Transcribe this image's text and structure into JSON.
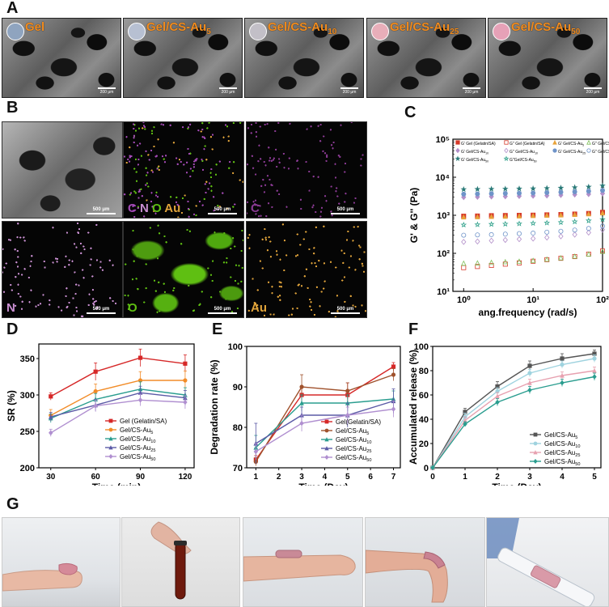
{
  "panels": {
    "A": "A",
    "B": "B",
    "C": "C",
    "D": "D",
    "E": "E",
    "F": "F",
    "G": "G"
  },
  "sem_images": [
    {
      "label": "Gel",
      "sub": "",
      "disc_color": "#8fa4bf",
      "scale": "200 μm"
    },
    {
      "label": "Gel/CS-Au",
      "sub": "5",
      "disc_color": "#b7c0d2",
      "scale": "200 μm"
    },
    {
      "label": "Gel/CS-Au",
      "sub": "10",
      "disc_color": "#c2bfc7",
      "scale": "200 μm"
    },
    {
      "label": "Gel/CS-Au",
      "sub": "25",
      "disc_color": "#e8aeb9",
      "scale": "200 μm"
    },
    {
      "label": "Gel/CS-Au",
      "sub": "50",
      "disc_color": "#e6a1b7",
      "scale": "200 μm"
    }
  ],
  "eds_maps": [
    {
      "label": "C N O Au",
      "scale": "500 μm",
      "kind": "sem"
    },
    {
      "label": "C N O Au",
      "scale": "500 μm",
      "kind": "overlay"
    },
    {
      "label": "C",
      "scale": "500 μm",
      "kind": "C",
      "color": "#8a3a93"
    },
    {
      "label": "N",
      "scale": "500 μm",
      "kind": "N",
      "color": "#c98fd1"
    },
    {
      "label": "O",
      "scale": "500 μm",
      "kind": "O",
      "color": "#5fbf12"
    },
    {
      "label": "Au",
      "scale": "500 μm",
      "kind": "Au",
      "color": "#e0a33a"
    }
  ],
  "chart_data": [
    {
      "id": "C",
      "type": "scatter",
      "xlabel": "ang.frequency (rad/s)",
      "ylabel": "G' & G'' (Pa)",
      "xscale": "log",
      "yscale": "log",
      "xlim": [
        0.7,
        100
      ],
      "ylim": [
        10,
        100000
      ],
      "xticks": [
        "10⁰",
        "10¹",
        "10²"
      ],
      "yticks": [
        "10¹",
        "10²",
        "10³",
        "10⁴",
        "10⁵"
      ],
      "x": [
        1.0,
        1.58,
        2.51,
        3.98,
        6.31,
        10.0,
        15.8,
        25.1,
        39.8,
        63.1,
        100
      ],
      "series": [
        {
          "name": "G' Gel (Gelatin/SA)",
          "color": "#d63a2a",
          "marker": "square-filled",
          "values": [
            950,
            960,
            980,
            990,
            1000,
            1010,
            1030,
            1050,
            1080,
            1120,
            1200
          ]
        },
        {
          "name": "G'' Gel (Gelatin/SA)",
          "color": "#d63a2a",
          "marker": "square-open",
          "values": [
            42,
            45,
            48,
            52,
            56,
            62,
            68,
            74,
            82,
            95,
            115
          ]
        },
        {
          "name": "G' Gel/CS-Au5",
          "color": "#e8a33a",
          "marker": "triangle-filled",
          "values": [
            900,
            910,
            930,
            940,
            960,
            980,
            1000,
            1020,
            1050,
            1090,
            1150
          ]
        },
        {
          "name": "G'' Gel/CS-Au5",
          "color": "#7fbf5a",
          "marker": "triangle-open",
          "values": [
            55,
            56,
            58,
            60,
            62,
            65,
            70,
            76,
            84,
            96,
            112
          ]
        },
        {
          "name": "G' Gel/CS-Au10",
          "color": "#b28fc9",
          "marker": "diamond-filled",
          "values": [
            3000,
            3050,
            3100,
            3150,
            3200,
            3250,
            3300,
            3400,
            3500,
            3600,
            3750
          ]
        },
        {
          "name": "G'' Gel/CS-Au10",
          "color": "#b28fc9",
          "marker": "diamond-open",
          "values": [
            200,
            205,
            215,
            225,
            235,
            245,
            260,
            280,
            310,
            350,
            420
          ]
        },
        {
          "name": "G' Gel/CS-Au25",
          "color": "#6f94c9",
          "marker": "circle-filled",
          "values": [
            3600,
            3650,
            3700,
            3750,
            3800,
            3850,
            3950,
            4050,
            4150,
            4300,
            4500
          ]
        },
        {
          "name": "G'' Gel/CS-Au25",
          "color": "#6f94c9",
          "marker": "circle-open",
          "values": [
            300,
            305,
            310,
            320,
            330,
            340,
            360,
            380,
            410,
            450,
            520
          ]
        },
        {
          "name": "G' Gel/CS-Au50",
          "color": "#2a7a78",
          "marker": "star-filled",
          "values": [
            4800,
            4850,
            4900,
            4950,
            5000,
            5050,
            5150,
            5250,
            5400,
            5600,
            6000
          ]
        },
        {
          "name": "G''Gel/CS-Au50",
          "color": "#2ea08a",
          "marker": "star-open",
          "values": [
            560,
            570,
            580,
            590,
            600,
            615,
            630,
            650,
            680,
            720,
            780
          ]
        }
      ],
      "legend_items": [
        {
          "text": "G' Gel (Gelatin/SA)",
          "sub": "",
          "color": "#d63a2a",
          "marker": "square-filled"
        },
        {
          "text": "G'' Gel (Gelatin/SA)",
          "sub": "",
          "color": "#d63a2a",
          "marker": "square-open"
        },
        {
          "text": "G' Gel/CS-Au",
          "sub": "5",
          "color": "#e8a33a",
          "marker": "triangle-filled"
        },
        {
          "text": "G'' Gel/CS-Au",
          "sub": "5",
          "color": "#7fbf5a",
          "marker": "triangle-open"
        },
        {
          "text": "G' Gel/CS-Au",
          "sub": "10",
          "color": "#b28fc9",
          "marker": "diamond-filled"
        },
        {
          "text": "G'' Gel/CS-Au",
          "sub": "10",
          "color": "#b28fc9",
          "marker": "diamond-open"
        },
        {
          "text": "G' Gel/CS-Au",
          "sub": "25",
          "color": "#6f94c9",
          "marker": "circle-filled"
        },
        {
          "text": "G'' Gel/CS-Au",
          "sub": "25",
          "color": "#6f94c9",
          "marker": "circle-open"
        },
        {
          "text": "G' Gel/CS-Au",
          "sub": "50",
          "color": "#2a7a78",
          "marker": "star-filled"
        },
        {
          "text": "G''Gel/CS-Au",
          "sub": "50",
          "color": "#2ea08a",
          "marker": "star-open"
        }
      ]
    },
    {
      "id": "D",
      "type": "line",
      "xlabel": "Time (min)",
      "ylabel": "SR (%)",
      "x": [
        30,
        60,
        90,
        120
      ],
      "xticks": [
        "30",
        "60",
        "90",
        "120"
      ],
      "ylim": [
        200,
        370
      ],
      "yticks": [
        200,
        250,
        300,
        350
      ],
      "series": [
        {
          "name": "Gel (Gelatin/SA)",
          "sub": "",
          "color": "#d62828",
          "values": [
            298,
            332,
            351,
            343
          ],
          "err": [
            5,
            12,
            12,
            12
          ]
        },
        {
          "name": "Gel/CS-Au",
          "sub": "5",
          "color": "#f28c28",
          "values": [
            272,
            305,
            320,
            320
          ],
          "err": [
            8,
            10,
            12,
            13
          ]
        },
        {
          "name": "Gel/CS-Au",
          "sub": "10",
          "color": "#2a9d8f",
          "values": [
            268,
            294,
            308,
            300
          ],
          "err": [
            6,
            8,
            10,
            10
          ]
        },
        {
          "name": "Gel/CS-Au",
          "sub": "25",
          "color": "#5b5aa6",
          "values": [
            270,
            286,
            303,
            296
          ],
          "err": [
            6,
            8,
            9,
            10
          ]
        },
        {
          "name": "Gel/CS-Au",
          "sub": "50",
          "color": "#b08fd0",
          "values": [
            248,
            285,
            293,
            290
          ],
          "err": [
            5,
            8,
            8,
            9
          ]
        }
      ]
    },
    {
      "id": "E",
      "type": "line",
      "xlabel": "Time (Day)",
      "ylabel": "Degradation rate (%)",
      "x": [
        1,
        3,
        5,
        7
      ],
      "xticks": [
        "1",
        "2",
        "3",
        "4",
        "5",
        "6",
        "7"
      ],
      "ylim": [
        70,
        100
      ],
      "yticks": [
        70,
        80,
        90,
        100
      ],
      "series": [
        {
          "name": "Gel(Gelatin/SA)",
          "sub": "",
          "color": "#d62828",
          "values": [
            72,
            88,
            88,
            95
          ],
          "err": [
            1,
            2,
            3,
            1
          ]
        },
        {
          "name": "Gel/CS-Au",
          "sub": "5",
          "color": "#a0522d",
          "values": [
            71.5,
            90,
            89,
            93
          ],
          "err": [
            1,
            3,
            2,
            1.5
          ]
        },
        {
          "name": "Gel/CS-Au",
          "sub": "10",
          "color": "#2a9d8f",
          "values": [
            75,
            86,
            86,
            87
          ],
          "err": [
            3,
            2,
            2,
            2
          ]
        },
        {
          "name": "Gel/CS-Au",
          "sub": "25",
          "color": "#5b5aa6",
          "values": [
            76,
            83,
            83,
            86.5
          ],
          "err": [
            5,
            2,
            3,
            3
          ]
        },
        {
          "name": "Gel/CS-Au",
          "sub": "50",
          "color": "#b08fd0",
          "values": [
            74,
            81,
            83,
            84.5
          ],
          "err": [
            2,
            2,
            2,
            2
          ]
        }
      ]
    },
    {
      "id": "F",
      "type": "line",
      "xlabel": "Time (Day)",
      "ylabel": "Accumulated release (%)",
      "x": [
        0,
        1,
        2,
        3,
        4,
        5
      ],
      "xticks": [
        "0",
        "1",
        "2",
        "3",
        "4",
        "5"
      ],
      "ylim": [
        0,
        100
      ],
      "yticks": [
        0,
        20,
        40,
        60,
        80,
        100
      ],
      "series": [
        {
          "name": "Gel/CS-Au",
          "sub": "5",
          "color": "#555555",
          "values": [
            0,
            46,
            67,
            84,
            90,
            94
          ],
          "err": [
            0,
            3,
            4,
            4,
            4,
            3
          ]
        },
        {
          "name": "Gel/CS-Au",
          "sub": "10",
          "color": "#9fd3df",
          "values": [
            0,
            42,
            63,
            78,
            85,
            90
          ],
          "err": [
            0,
            3,
            3,
            3,
            3,
            3
          ]
        },
        {
          "name": "Gel/CS-Au",
          "sub": "25",
          "color": "#e7a1b0",
          "values": [
            0,
            39,
            59,
            70,
            76,
            80
          ],
          "err": [
            0,
            3,
            3,
            3,
            3,
            3
          ]
        },
        {
          "name": "Gel/CS-Au",
          "sub": "50",
          "color": "#2a9d8f",
          "values": [
            0,
            36,
            54,
            64,
            70,
            75
          ],
          "err": [
            0,
            2,
            3,
            3,
            3,
            3
          ]
        }
      ]
    }
  ]
}
